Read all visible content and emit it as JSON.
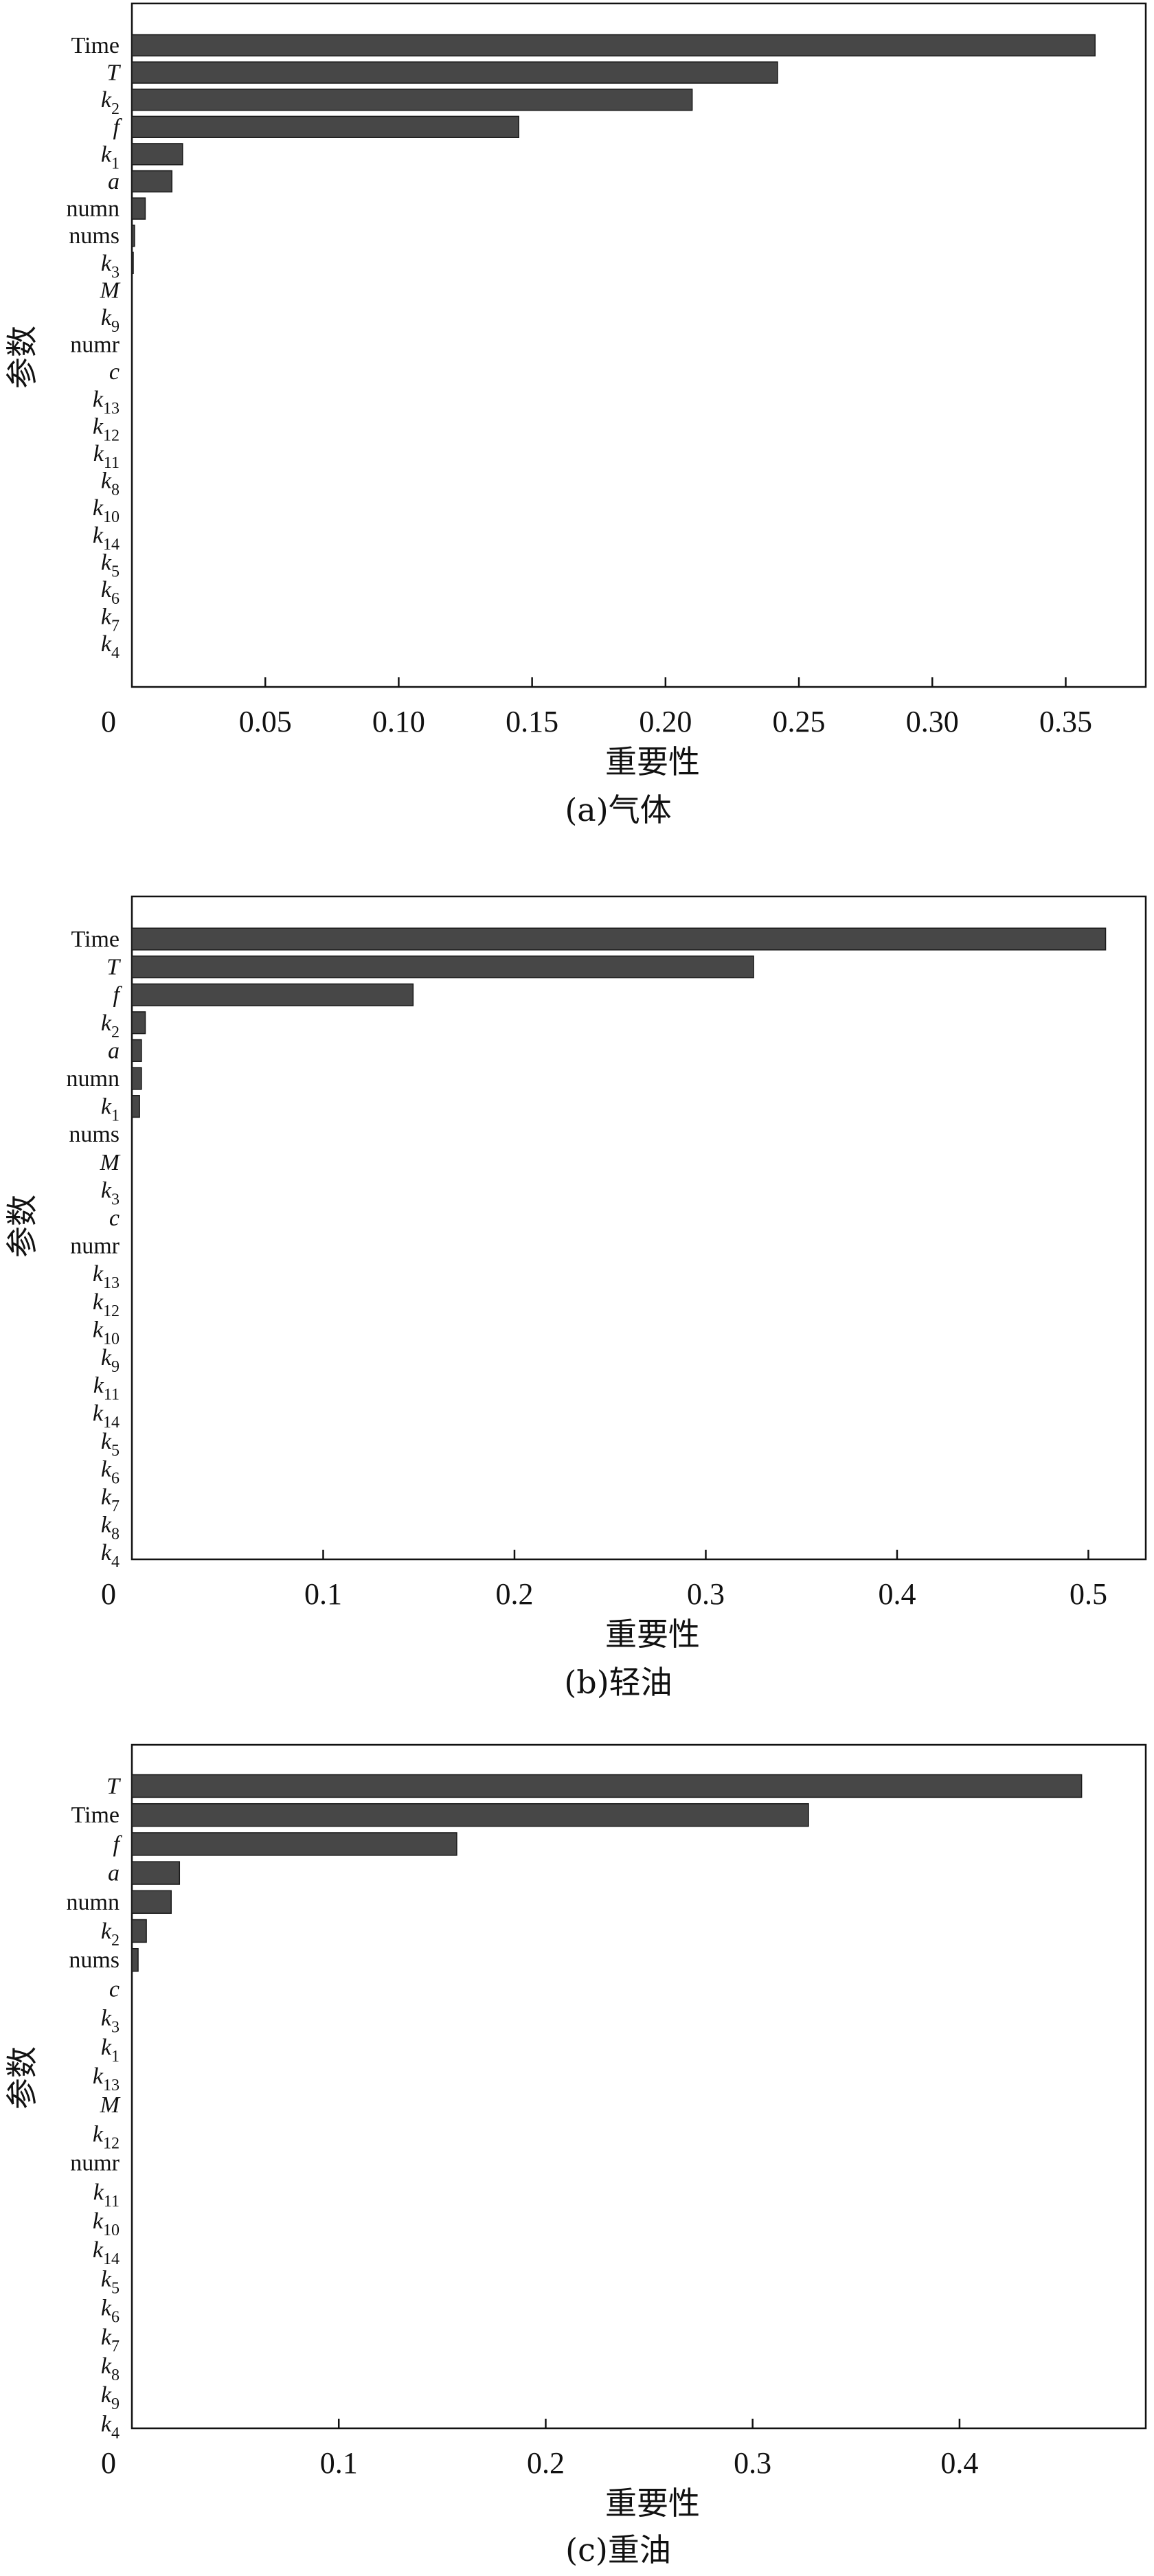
{
  "chart_data": [
    {
      "type": "bar",
      "orientation": "horizontal",
      "caption": "(a)气体",
      "xlabel": "重要性",
      "ylabel": "参数",
      "xlim": [
        0,
        0.38
      ],
      "xticks": [
        0,
        0.05,
        0.1,
        0.15,
        0.2,
        0.25,
        0.3,
        0.35
      ],
      "xtick_labels": [
        "0",
        "0.05",
        "0.10",
        "0.15",
        "0.20",
        "0.25",
        "0.30",
        "0.35"
      ],
      "categories": [
        {
          "base": "Time",
          "sub": "",
          "italic": false
        },
        {
          "base": "T",
          "sub": "",
          "italic": true
        },
        {
          "base": "k",
          "sub": "2",
          "italic": true
        },
        {
          "base": "f",
          "sub": "",
          "italic": true
        },
        {
          "base": "k",
          "sub": "1",
          "italic": true
        },
        {
          "base": "a",
          "sub": "",
          "italic": true
        },
        {
          "base": "numn",
          "sub": "",
          "italic": false
        },
        {
          "base": "nums",
          "sub": "",
          "italic": false
        },
        {
          "base": "k",
          "sub": "3",
          "italic": true
        },
        {
          "base": "M",
          "sub": "",
          "italic": true
        },
        {
          "base": "k",
          "sub": "9",
          "italic": true
        },
        {
          "base": "numr",
          "sub": "",
          "italic": false
        },
        {
          "base": "c",
          "sub": "",
          "italic": true
        },
        {
          "base": "k",
          "sub": "13",
          "italic": true
        },
        {
          "base": "k",
          "sub": "12",
          "italic": true
        },
        {
          "base": "k",
          "sub": "11",
          "italic": true
        },
        {
          "base": "k",
          "sub": "8",
          "italic": true
        },
        {
          "base": "k",
          "sub": "10",
          "italic": true
        },
        {
          "base": "k",
          "sub": "14",
          "italic": true
        },
        {
          "base": "k",
          "sub": "5",
          "italic": true
        },
        {
          "base": "k",
          "sub": "6",
          "italic": true
        },
        {
          "base": "k",
          "sub": "7",
          "italic": true
        },
        {
          "base": "k",
          "sub": "4",
          "italic": true
        }
      ],
      "values": [
        0.361,
        0.242,
        0.21,
        0.145,
        0.019,
        0.015,
        0.005,
        0.001,
        0.0005,
        0,
        0,
        0,
        0,
        0,
        0,
        0,
        0,
        0,
        0,
        0,
        0,
        0,
        0
      ]
    },
    {
      "type": "bar",
      "orientation": "horizontal",
      "caption": "(b)轻油",
      "xlabel": "重要性",
      "ylabel": "参数",
      "xlim": [
        0,
        0.53
      ],
      "xticks": [
        0,
        0.1,
        0.2,
        0.3,
        0.4,
        0.5
      ],
      "xtick_labels": [
        "0",
        "0.1",
        "0.2",
        "0.3",
        "0.4",
        "0.5"
      ],
      "categories": [
        {
          "base": "Time",
          "sub": "",
          "italic": false
        },
        {
          "base": "T",
          "sub": "",
          "italic": true
        },
        {
          "base": "f",
          "sub": "",
          "italic": true
        },
        {
          "base": "k",
          "sub": "2",
          "italic": true
        },
        {
          "base": "a",
          "sub": "",
          "italic": true
        },
        {
          "base": "numn",
          "sub": "",
          "italic": false
        },
        {
          "base": "k",
          "sub": "1",
          "italic": true
        },
        {
          "base": "nums",
          "sub": "",
          "italic": false
        },
        {
          "base": "M",
          "sub": "",
          "italic": true
        },
        {
          "base": "k",
          "sub": "3",
          "italic": true
        },
        {
          "base": "c",
          "sub": "",
          "italic": true
        },
        {
          "base": "numr",
          "sub": "",
          "italic": false
        },
        {
          "base": "k",
          "sub": "13",
          "italic": true
        },
        {
          "base": "k",
          "sub": "12",
          "italic": true
        },
        {
          "base": "k",
          "sub": "10",
          "italic": true
        },
        {
          "base": "k",
          "sub": "9",
          "italic": true
        },
        {
          "base": "k",
          "sub": "11",
          "italic": true
        },
        {
          "base": "k",
          "sub": "14",
          "italic": true
        },
        {
          "base": "k",
          "sub": "5",
          "italic": true
        },
        {
          "base": "k",
          "sub": "6",
          "italic": true
        },
        {
          "base": "k",
          "sub": "7",
          "italic": true
        },
        {
          "base": "k",
          "sub": "8",
          "italic": true
        },
        {
          "base": "k",
          "sub": "4",
          "italic": true
        }
      ],
      "values": [
        0.509,
        0.325,
        0.147,
        0.007,
        0.005,
        0.005,
        0.004,
        0,
        0,
        0,
        0,
        0,
        0,
        0,
        0,
        0,
        0,
        0,
        0,
        0,
        0,
        0,
        0
      ]
    },
    {
      "type": "bar",
      "orientation": "horizontal",
      "caption": "(c)重油",
      "xlabel": "重要性",
      "ylabel": "参数",
      "xlim": [
        0,
        0.49
      ],
      "xticks": [
        0,
        0.1,
        0.2,
        0.3,
        0.4
      ],
      "xtick_labels": [
        "0",
        "0.1",
        "0.2",
        "0.3",
        "0.4"
      ],
      "categories": [
        {
          "base": "T",
          "sub": "",
          "italic": true
        },
        {
          "base": "Time",
          "sub": "",
          "italic": false
        },
        {
          "base": "f",
          "sub": "",
          "italic": true
        },
        {
          "base": "a",
          "sub": "",
          "italic": true
        },
        {
          "base": "numn",
          "sub": "",
          "italic": false
        },
        {
          "base": "k",
          "sub": "2",
          "italic": true
        },
        {
          "base": "nums",
          "sub": "",
          "italic": false
        },
        {
          "base": "c",
          "sub": "",
          "italic": true
        },
        {
          "base": "k",
          "sub": "3",
          "italic": true
        },
        {
          "base": "k",
          "sub": "1",
          "italic": true
        },
        {
          "base": "k",
          "sub": "13",
          "italic": true
        },
        {
          "base": "M",
          "sub": "",
          "italic": true
        },
        {
          "base": "k",
          "sub": "12",
          "italic": true
        },
        {
          "base": "numr",
          "sub": "",
          "italic": false
        },
        {
          "base": "k",
          "sub": "11",
          "italic": true
        },
        {
          "base": "k",
          "sub": "10",
          "italic": true
        },
        {
          "base": "k",
          "sub": "14",
          "italic": true
        },
        {
          "base": "k",
          "sub": "5",
          "italic": true
        },
        {
          "base": "k",
          "sub": "6",
          "italic": true
        },
        {
          "base": "k",
          "sub": "7",
          "italic": true
        },
        {
          "base": "k",
          "sub": "8",
          "italic": true
        },
        {
          "base": "k",
          "sub": "9",
          "italic": true
        },
        {
          "base": "k",
          "sub": "4",
          "italic": true
        }
      ],
      "values": [
        0.459,
        0.327,
        0.157,
        0.023,
        0.019,
        0.007,
        0.003,
        0,
        0,
        0,
        0,
        0,
        0,
        0,
        0,
        0,
        0,
        0,
        0,
        0,
        0,
        0,
        0
      ]
    }
  ]
}
